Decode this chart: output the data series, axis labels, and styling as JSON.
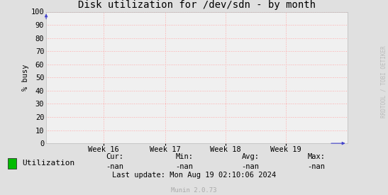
{
  "title": "Disk utilization for /dev/sdn - by month",
  "ylabel": "% busy",
  "yticks": [
    0,
    10,
    20,
    30,
    40,
    50,
    60,
    70,
    80,
    90,
    100
  ],
  "ylim": [
    0,
    100
  ],
  "xtick_labels": [
    "Week 16",
    "Week 17",
    "Week 18",
    "Week 19"
  ],
  "xtick_positions": [
    0.19,
    0.395,
    0.595,
    0.795
  ],
  "bg_color": "#e0e0e0",
  "plot_bg_color": "#f0f0f0",
  "grid_color": "#ffaaaa",
  "grid_linestyle": ":",
  "legend_label": "Utilization",
  "legend_color": "#00bb00",
  "cur_label": "Cur:",
  "cur_val": "-nan",
  "min_label": "Min:",
  "min_val": "-nan",
  "avg_label": "Avg:",
  "avg_val": "-nan",
  "max_label": "Max:",
  "max_val": "-nan",
  "last_update": "Last update: Mon Aug 19 02:10:06 2024",
  "munin_label": "Munin 2.0.73",
  "watermark": "RRDTOOL / TOBI OETIKER",
  "title_fontsize": 10,
  "axis_fontsize": 7.5,
  "legend_fontsize": 8,
  "footer_fontsize": 7.5,
  "munin_fontsize": 6.5,
  "watermark_fontsize": 5.5
}
